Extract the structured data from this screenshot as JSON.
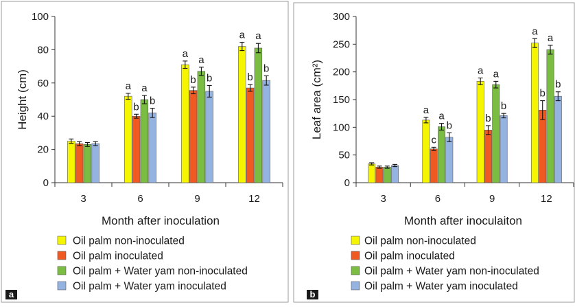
{
  "chart_data": [
    {
      "type": "bar",
      "panel_label": "a",
      "categories": [
        "3",
        "6",
        "9",
        "12"
      ],
      "xlabel": "Month after inoculation",
      "ylabel": "Height (cm)",
      "ylim": [
        0,
        100
      ],
      "yticks": [
        0,
        20,
        40,
        60,
        80,
        100
      ],
      "grid": false,
      "legend_position": "bottom",
      "series": [
        {
          "name": "Oil palm non-inoculated",
          "color": "#f5f500",
          "values": [
            25,
            52,
            71,
            82
          ],
          "errors": [
            1.3,
            1.8,
            2.2,
            2.5
          ],
          "labels": [
            "",
            "a",
            "a",
            "a"
          ]
        },
        {
          "name": "Oil palm inoculated",
          "color": "#ee5a22",
          "values": [
            23.5,
            40,
            55.5,
            57
          ],
          "errors": [
            1.2,
            1.2,
            2.0,
            2.0
          ],
          "labels": [
            "",
            "b",
            "b",
            "b"
          ]
        },
        {
          "name": "Oil palm + Water yam non-inoculated",
          "color": "#7bbd43",
          "values": [
            23,
            50,
            67,
            81
          ],
          "errors": [
            1.2,
            2.5,
            2.5,
            2.8
          ],
          "labels": [
            "",
            "a",
            "a",
            "a"
          ]
        },
        {
          "name": "Oil palm + Water yam inoculated",
          "color": "#95b3e1",
          "values": [
            23.5,
            42,
            55,
            61.5
          ],
          "errors": [
            1.2,
            2.8,
            3.5,
            2.8
          ],
          "labels": [
            "",
            "b",
            "b",
            "b"
          ]
        }
      ]
    },
    {
      "type": "bar",
      "panel_label": "b",
      "categories": [
        "3",
        "6",
        "9",
        "12"
      ],
      "xlabel": "Month after inoculaiton",
      "ylabel": "Leaf area (cm²)",
      "ylim": [
        0,
        300
      ],
      "yticks": [
        0,
        50,
        100,
        150,
        200,
        250,
        300
      ],
      "grid": false,
      "legend_position": "bottom",
      "series": [
        {
          "name": "Oil palm non-inoculated",
          "color": "#f5f500",
          "values": [
            34,
            113,
            183,
            252
          ],
          "errors": [
            2,
            5,
            6,
            8
          ],
          "labels": [
            "",
            "a",
            "a",
            "a"
          ]
        },
        {
          "name": "Oil palm inoculated",
          "color": "#ee5a22",
          "values": [
            28,
            61,
            95,
            131
          ],
          "errors": [
            2,
            3,
            8,
            17
          ],
          "labels": [
            "",
            "c",
            "b",
            "b"
          ]
        },
        {
          "name": "Oil palm + Water yam non-inoculated",
          "color": "#7bbd43",
          "values": [
            28,
            101,
            177,
            240
          ],
          "errors": [
            2,
            6,
            6,
            8
          ],
          "labels": [
            "",
            "a",
            "a",
            "a"
          ]
        },
        {
          "name": "Oil palm + Water yam inoculated",
          "color": "#95b3e1",
          "values": [
            31,
            82,
            121,
            156
          ],
          "errors": [
            2,
            8,
            4,
            8
          ],
          "labels": [
            "",
            "b",
            "b",
            "b"
          ]
        }
      ]
    }
  ]
}
